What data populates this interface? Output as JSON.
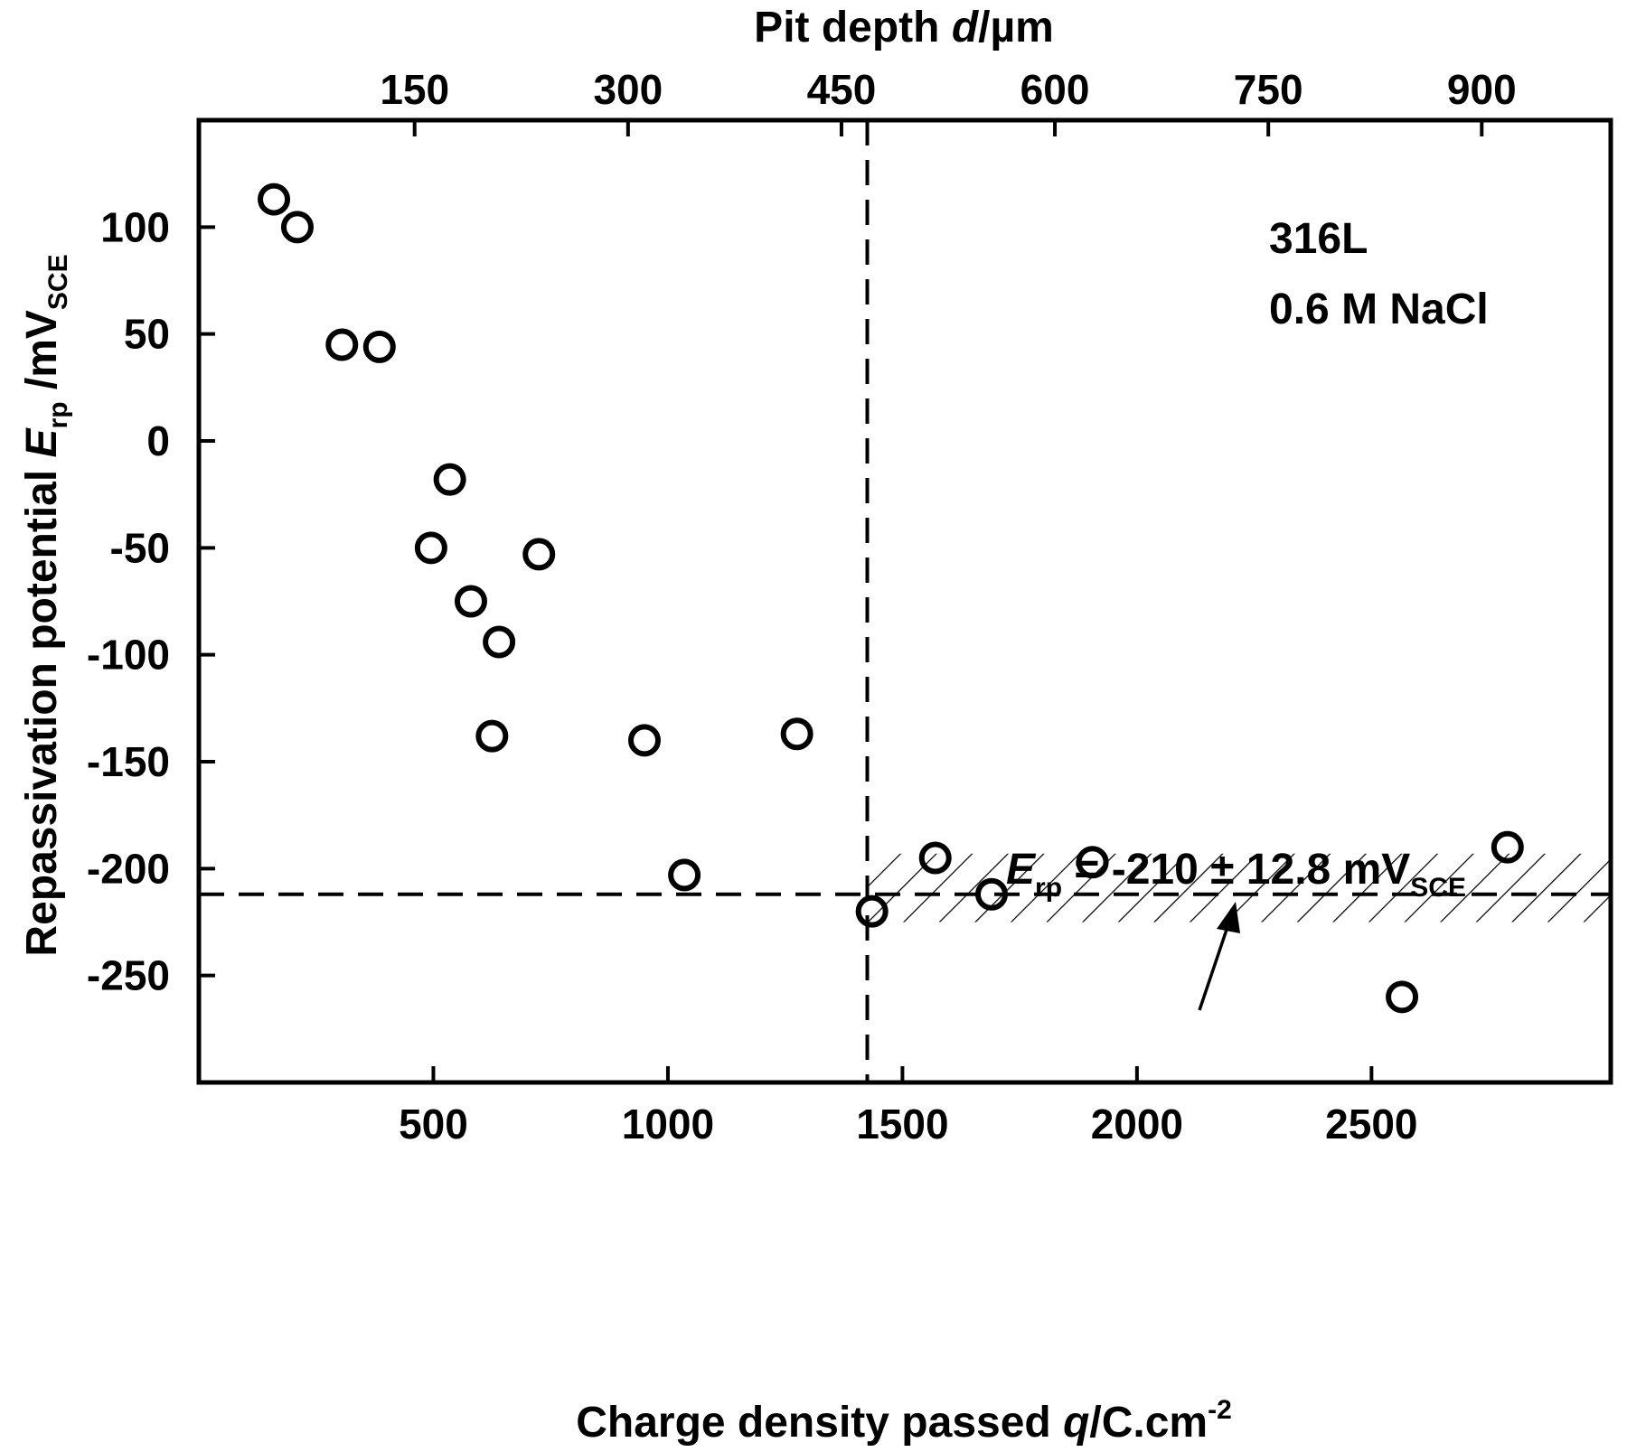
{
  "chart_data": {
    "type": "scatter",
    "xlabel_bottom": {
      "main": "Charge density passed ",
      "var": "q",
      "unit": "/C.cm",
      "sup": "-2"
    },
    "xlabel_top": {
      "main": "Pit depth ",
      "var": "d",
      "unit": "/µm"
    },
    "ylabel": {
      "main": "Repassivation potential ",
      "var": "E",
      "sub": "rp",
      "unit": " /mV",
      "unit_sub": "SCE"
    },
    "x_range": [
      0,
      3010
    ],
    "y_range": [
      -300,
      150
    ],
    "x_ticks": [
      500,
      1000,
      1500,
      2000,
      2500
    ],
    "y_ticks": [
      100,
      50,
      0,
      -50,
      -100,
      -150,
      -200,
      -250
    ],
    "top_ticks": [
      {
        "label": "150",
        "x": 460
      },
      {
        "label": "300",
        "x": 915
      },
      {
        "label": "450",
        "x": 1370
      },
      {
        "label": "600",
        "x": 1825
      },
      {
        "label": "750",
        "x": 2280
      },
      {
        "label": "900",
        "x": 2735
      }
    ],
    "points": [
      {
        "x": 160,
        "y": 113
      },
      {
        "x": 210,
        "y": 100
      },
      {
        "x": 305,
        "y": 45
      },
      {
        "x": 385,
        "y": 44
      },
      {
        "x": 535,
        "y": -18
      },
      {
        "x": 495,
        "y": -50
      },
      {
        "x": 725,
        "y": -53
      },
      {
        "x": 580,
        "y": -75
      },
      {
        "x": 640,
        "y": -94
      },
      {
        "x": 625,
        "y": -138
      },
      {
        "x": 950,
        "y": -140
      },
      {
        "x": 1275,
        "y": -137
      },
      {
        "x": 1035,
        "y": -203
      },
      {
        "x": 1435,
        "y": -220
      },
      {
        "x": 1570,
        "y": -195
      },
      {
        "x": 1690,
        "y": -212
      },
      {
        "x": 1905,
        "y": -197
      },
      {
        "x": 2565,
        "y": -260
      },
      {
        "x": 2790,
        "y": -190
      }
    ],
    "reference_lines": {
      "vertical_x": 1425,
      "horizontal_y": -212
    },
    "band": {
      "x_from": 1425,
      "x_to": 3010,
      "y_from": -225,
      "y_to": -193
    },
    "annotations": {
      "material": "316L",
      "solution": "0.6 M NaCl",
      "band_label": {
        "var": "E",
        "sub": "rp",
        "text": " = -210 ± 12.8 mV",
        "unit_sub": "SCE"
      }
    }
  }
}
